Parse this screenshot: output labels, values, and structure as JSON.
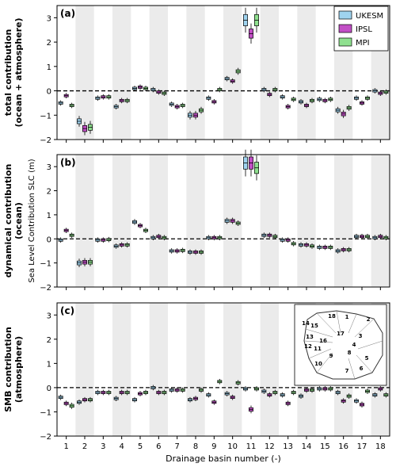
{
  "figure": {
    "xlabel": "Drainage basin number (-)",
    "shared_ylabel": "Sea Level Contribution SLC (m)",
    "legend": [
      "UKESM",
      "IPSL",
      "MPI"
    ]
  },
  "colors": {
    "UKESM": "#9fd3ef",
    "IPSL": "#c24fc6",
    "MPI": "#8fe08f",
    "band": "#ebebeb",
    "zero_line": "#000000"
  },
  "chart_data": [
    {
      "type": "box",
      "panel": "(a)",
      "ylabel": "total contribution\n(ocean + atmosphere)",
      "ylim": [
        -2,
        3.5
      ],
      "yticks": [
        -2,
        -1,
        0,
        1,
        2,
        3
      ],
      "categories": [
        "1",
        "2",
        "3",
        "4",
        "5",
        "6",
        "7",
        "8",
        "9",
        "10",
        "11",
        "12",
        "13",
        "14",
        "15",
        "16",
        "17",
        "18"
      ],
      "legend_position": "top-right",
      "series": [
        {
          "name": "UKESM",
          "values": [
            -0.5,
            -1.25,
            -0.3,
            -0.65,
            0.1,
            0.05,
            -0.55,
            -1.0,
            -0.3,
            0.5,
            2.9,
            0.05,
            -0.25,
            -0.45,
            -0.35,
            -0.8,
            -0.3,
            0.0
          ]
        },
        {
          "name": "IPSL",
          "values": [
            -0.2,
            -1.55,
            -0.25,
            -0.4,
            0.15,
            -0.05,
            -0.65,
            -1.0,
            -0.45,
            0.4,
            2.35,
            -0.15,
            -0.65,
            -0.6,
            -0.4,
            -0.95,
            -0.5,
            -0.1
          ]
        },
        {
          "name": "MPI",
          "values": [
            -0.6,
            -1.5,
            -0.25,
            -0.4,
            0.1,
            -0.1,
            -0.6,
            -0.8,
            0.05,
            0.8,
            2.9,
            0.05,
            -0.35,
            -0.4,
            -0.35,
            -0.7,
            -0.3,
            -0.05
          ]
        }
      ]
    },
    {
      "type": "box",
      "panel": "(b)",
      "ylabel": "dynamical contribution\n(ocean)",
      "ylim": [
        -2,
        3.5
      ],
      "yticks": [
        -2,
        -1,
        0,
        1,
        2,
        3
      ],
      "categories": [
        "1",
        "2",
        "3",
        "4",
        "5",
        "6",
        "7",
        "8",
        "9",
        "10",
        "11",
        "12",
        "13",
        "14",
        "15",
        "16",
        "17",
        "18"
      ],
      "series": [
        {
          "name": "UKESM",
          "values": [
            -0.05,
            -1.0,
            -0.05,
            -0.3,
            0.7,
            0.05,
            -0.5,
            -0.55,
            0.05,
            0.75,
            3.15,
            0.15,
            -0.05,
            -0.25,
            -0.35,
            -0.5,
            0.1,
            0.05
          ]
        },
        {
          "name": "IPSL",
          "values": [
            0.35,
            -0.97,
            -0.05,
            -0.25,
            0.55,
            0.1,
            -0.5,
            -0.55,
            0.05,
            0.75,
            3.15,
            0.15,
            -0.05,
            -0.25,
            -0.35,
            -0.45,
            0.1,
            0.1
          ]
        },
        {
          "name": "MPI",
          "values": [
            0.15,
            -0.97,
            -0.03,
            -0.25,
            0.35,
            0.05,
            -0.48,
            -0.55,
            0.05,
            0.65,
            2.95,
            0.1,
            -0.2,
            -0.3,
            -0.35,
            -0.45,
            0.1,
            0.05
          ]
        }
      ]
    },
    {
      "type": "box",
      "panel": "(c)",
      "ylabel": "SMB contribution\n(atmosphere)",
      "ylim": [
        -2,
        3.5
      ],
      "yticks": [
        -2,
        -1,
        0,
        1,
        2,
        3
      ],
      "categories": [
        "1",
        "2",
        "3",
        "4",
        "5",
        "6",
        "7",
        "8",
        "9",
        "10",
        "11",
        "12",
        "13",
        "14",
        "15",
        "16",
        "17",
        "18"
      ],
      "inset_map_labels": [
        "1",
        "2",
        "3",
        "4",
        "5",
        "6",
        "7",
        "8",
        "9",
        "10",
        "11",
        "12",
        "13",
        "14",
        "15",
        "16",
        "17",
        "18"
      ],
      "series": [
        {
          "name": "UKESM",
          "values": [
            -0.4,
            -0.6,
            -0.2,
            -0.45,
            -0.5,
            0.0,
            -0.1,
            -0.5,
            -0.3,
            -0.25,
            -0.05,
            -0.15,
            -0.3,
            -0.35,
            -0.05,
            -0.2,
            -0.55,
            -0.3
          ]
        },
        {
          "name": "IPSL",
          "values": [
            -0.65,
            -0.5,
            -0.2,
            -0.2,
            -0.25,
            -0.2,
            -0.1,
            -0.45,
            -0.6,
            -0.4,
            -0.9,
            -0.3,
            -0.65,
            -0.1,
            -0.05,
            -0.55,
            -0.7,
            -0.05
          ]
        },
        {
          "name": "MPI",
          "values": [
            -0.75,
            -0.5,
            -0.2,
            -0.2,
            -0.2,
            -0.2,
            -0.1,
            -0.1,
            0.25,
            0.2,
            -0.05,
            -0.2,
            -0.2,
            -0.1,
            -0.05,
            -0.35,
            -0.15,
            -0.3
          ]
        }
      ]
    }
  ]
}
